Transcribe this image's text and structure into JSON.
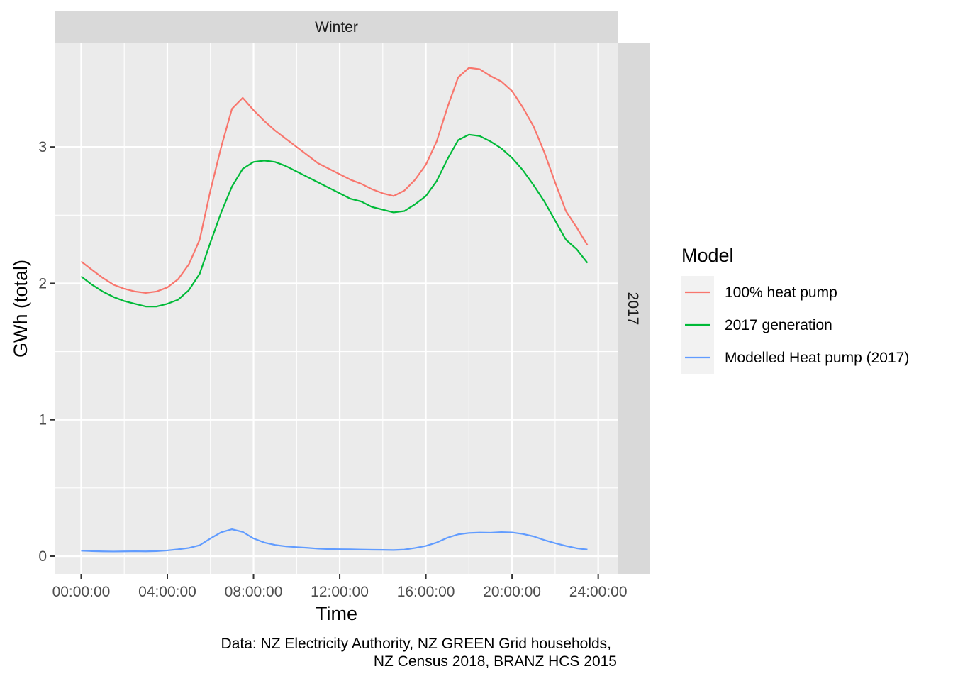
{
  "chart_data": {
    "type": "line",
    "facet_top": "Winter",
    "facet_right": "2017",
    "xlabel": "Time",
    "ylabel": "GWh (total)",
    "x_tick_labels": [
      "00:00:00",
      "04:00:00",
      "08:00:00",
      "12:00:00",
      "16:00:00",
      "20:00:00",
      "24:00:00"
    ],
    "x_ticks_hours": [
      0,
      4,
      8,
      12,
      16,
      20,
      24
    ],
    "y_ticks": [
      0,
      1,
      2,
      3
    ],
    "xlim_hours": [
      -1.2,
      24.9
    ],
    "ylim": [
      -0.13,
      3.76
    ],
    "grid": true,
    "legend": {
      "title": "Model",
      "position": "right"
    },
    "x_hours": [
      0,
      0.5,
      1,
      1.5,
      2,
      2.5,
      3,
      3.5,
      4,
      4.5,
      5,
      5.5,
      6,
      6.5,
      7,
      7.5,
      8,
      8.5,
      9,
      9.5,
      10,
      10.5,
      11,
      11.5,
      12,
      12.5,
      13,
      13.5,
      14,
      14.5,
      15,
      15.5,
      16,
      16.5,
      17,
      17.5,
      18,
      18.5,
      19,
      19.5,
      20,
      20.5,
      21,
      21.5,
      22,
      22.5,
      23,
      23.5
    ],
    "series": [
      {
        "name": "100% heat pump",
        "color": "#F8766D",
        "values": [
          2.16,
          2.1,
          2.04,
          1.99,
          1.96,
          1.94,
          1.93,
          1.94,
          1.97,
          2.03,
          2.14,
          2.32,
          2.68,
          3.0,
          3.28,
          3.36,
          3.27,
          3.19,
          3.12,
          3.06,
          3.0,
          2.94,
          2.88,
          2.84,
          2.8,
          2.76,
          2.73,
          2.69,
          2.66,
          2.64,
          2.68,
          2.76,
          2.87,
          3.04,
          3.29,
          3.51,
          3.58,
          3.57,
          3.52,
          3.48,
          3.41,
          3.29,
          3.15,
          2.96,
          2.74,
          2.53,
          2.41,
          2.28
        ]
      },
      {
        "name": "2017 generation",
        "color": "#00BA38",
        "values": [
          2.05,
          1.99,
          1.94,
          1.9,
          1.87,
          1.85,
          1.83,
          1.83,
          1.85,
          1.88,
          1.95,
          2.07,
          2.3,
          2.52,
          2.71,
          2.84,
          2.89,
          2.9,
          2.89,
          2.86,
          2.82,
          2.78,
          2.74,
          2.7,
          2.66,
          2.62,
          2.6,
          2.56,
          2.54,
          2.52,
          2.53,
          2.58,
          2.64,
          2.75,
          2.91,
          3.05,
          3.09,
          3.08,
          3.04,
          2.99,
          2.92,
          2.83,
          2.72,
          2.6,
          2.46,
          2.32,
          2.25,
          2.15
        ]
      },
      {
        "name": "Modelled Heat pump (2017)",
        "color": "#619CFF",
        "values": [
          0.04,
          0.037,
          0.035,
          0.034,
          0.035,
          0.036,
          0.035,
          0.037,
          0.042,
          0.05,
          0.06,
          0.08,
          0.13,
          0.175,
          0.197,
          0.178,
          0.13,
          0.1,
          0.082,
          0.072,
          0.066,
          0.061,
          0.055,
          0.052,
          0.051,
          0.05,
          0.048,
          0.047,
          0.046,
          0.045,
          0.048,
          0.06,
          0.075,
          0.1,
          0.135,
          0.16,
          0.17,
          0.173,
          0.172,
          0.176,
          0.174,
          0.163,
          0.145,
          0.118,
          0.095,
          0.075,
          0.058,
          0.048
        ]
      }
    ],
    "caption": [
      "Data: NZ Electricity Authority, NZ GREEN Grid households,",
      "NZ Census 2018, BRANZ HCS 2015"
    ]
  }
}
